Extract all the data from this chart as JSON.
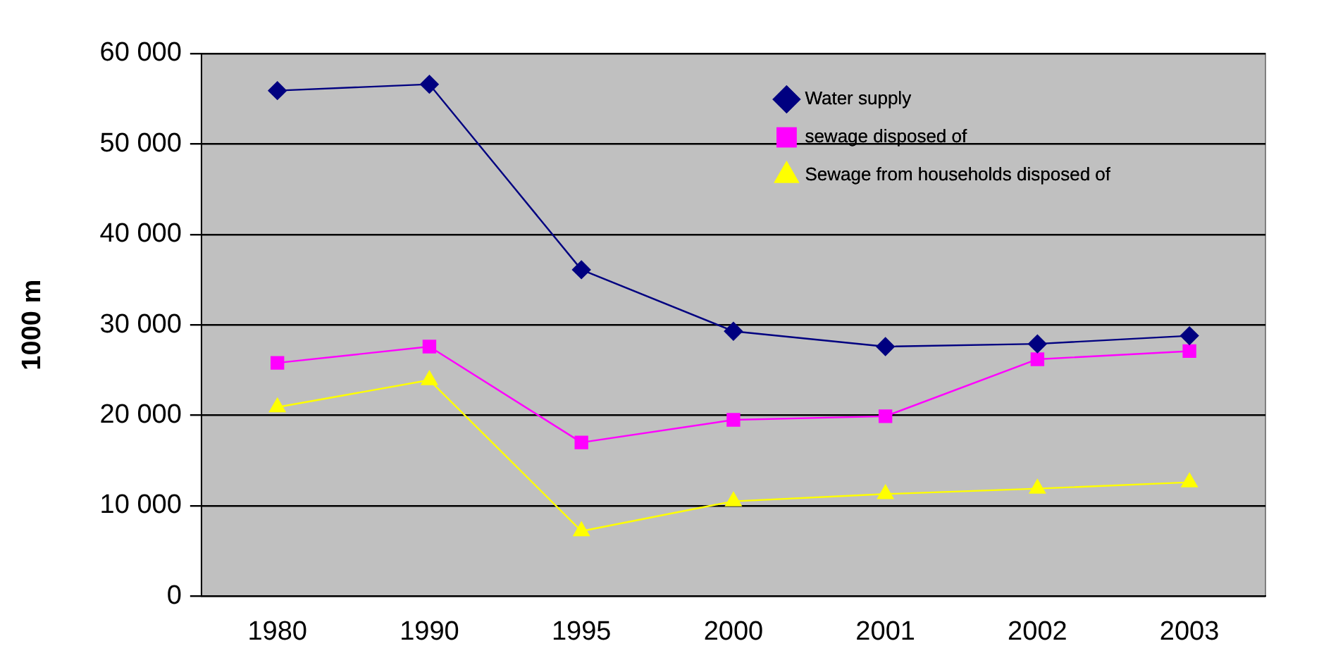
{
  "chart_data": {
    "type": "line",
    "ylabel": "1000 m",
    "categories": [
      "1980",
      "1990",
      "1995",
      "2000",
      "2001",
      "2002",
      "2003"
    ],
    "series": [
      {
        "name": "Water supply",
        "color": "#000080",
        "marker": "diamond",
        "values": [
          55900,
          56600,
          36100,
          29300,
          27600,
          27900,
          28800
        ]
      },
      {
        "name": "sewage disposed of",
        "color": "#ff00ff",
        "marker": "square",
        "values": [
          25800,
          27600,
          17000,
          19500,
          19900,
          26200,
          27100
        ]
      },
      {
        "name": "Sewage from households disposed of",
        "color": "#ffff00",
        "marker": "triangle",
        "values": [
          20900,
          23900,
          7200,
          10500,
          11300,
          11900,
          12600
        ]
      }
    ],
    "ylim": [
      0,
      60000
    ],
    "yticks": [
      0,
      10000,
      20000,
      30000,
      40000,
      50000,
      60000
    ],
    "grid": "y",
    "legend": "top right"
  }
}
